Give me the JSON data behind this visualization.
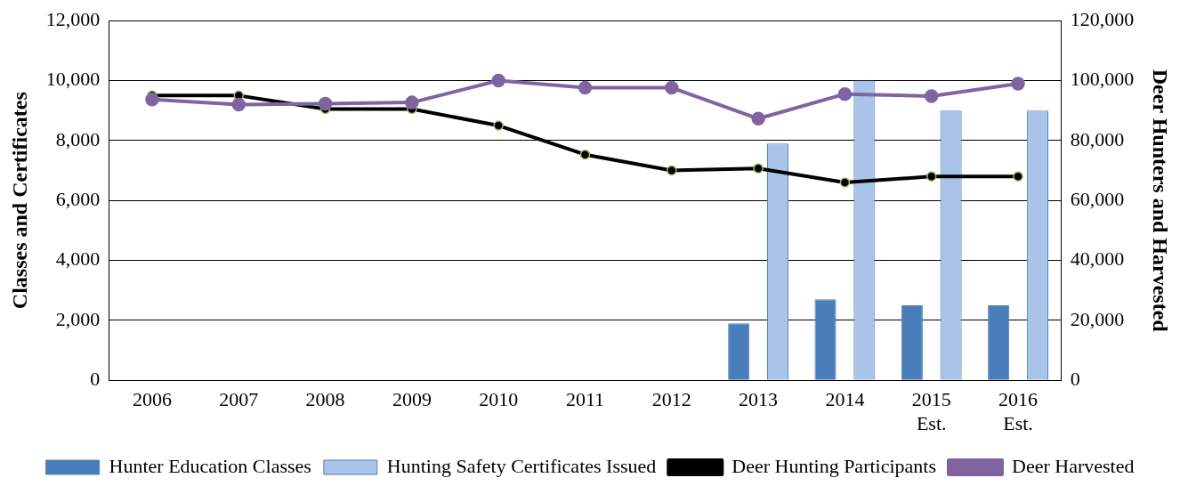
{
  "chart_data": {
    "type": "bar",
    "categories": [
      "2006",
      "2007",
      "2008",
      "2009",
      "2010",
      "2011",
      "2012",
      "2013",
      "2014",
      "2015\nEst.",
      "2016\nEst."
    ],
    "ylabel": "Classes and Certificates",
    "y2label": "Deer Hunters and Harvested",
    "ylim": [
      0,
      12000
    ],
    "yticks": [
      0,
      {
        "value": 2000,
        "label": "2,000"
      },
      {
        "value": 4000,
        "label": "4,000"
      },
      {
        "value": 6000,
        "label": "6,000"
      },
      {
        "value": 8000,
        "label": "8,000"
      },
      {
        "value": 10000,
        "label": "10,000"
      },
      {
        "value": 12000,
        "label": "12,000"
      }
    ],
    "y2lim": [
      0,
      120000
    ],
    "y2ticks": [
      0,
      {
        "value": 20000,
        "label": "20,000"
      },
      {
        "value": 40000,
        "label": "40,000"
      },
      {
        "value": 60000,
        "label": "60,000"
      },
      {
        "value": 80000,
        "label": "80,000"
      },
      {
        "value": 100000,
        "label": "100,000"
      },
      {
        "value": 120000,
        "label": "120,000"
      }
    ],
    "grid": "y",
    "legend": "bottom",
    "marker": "circle",
    "series": [
      {
        "name": "Hunter Education Classes",
        "color": "#4a7ebb",
        "values": [
          null,
          null,
          null,
          null,
          null,
          null,
          null,
          1900,
          2700,
          2500,
          2500
        ]
      },
      {
        "name": "Hunting Safety Certificates Issued",
        "color": "#a9c4e8",
        "values": [
          null,
          null,
          null,
          null,
          null,
          null,
          null,
          7900,
          10000,
          9000,
          9000
        ]
      },
      {
        "name": "Deer Hunting Participants",
        "type": "line",
        "axis": "y2",
        "color": "#000000",
        "values": [
          95000,
          95000,
          90500,
          90500,
          85000,
          75300,
          70000,
          70700,
          66000,
          68000,
          68000
        ]
      },
      {
        "name": "Deer Harvested",
        "type": "line",
        "axis": "y2",
        "color": "#8064a2",
        "values": [
          93700,
          92000,
          92300,
          92700,
          100000,
          97600,
          97600,
          87300,
          95500,
          94800,
          99000
        ]
      }
    ]
  }
}
